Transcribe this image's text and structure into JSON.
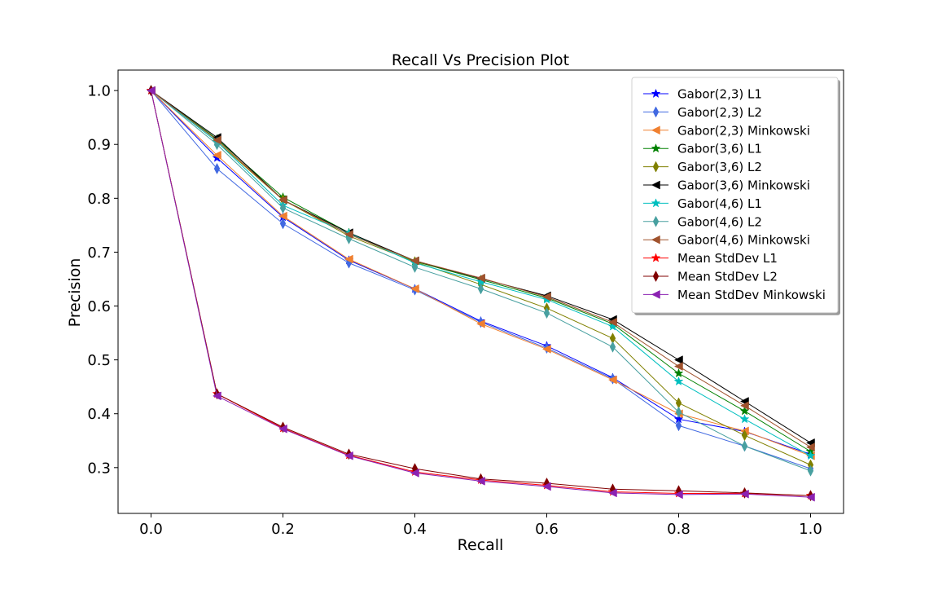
{
  "chart_data": {
    "type": "line",
    "title": "Recall Vs Precision Plot",
    "xlabel": "Recall",
    "ylabel": "Precision",
    "xlim": [
      -0.05,
      1.05
    ],
    "ylim": [
      0.215,
      1.038
    ],
    "x": [
      0.0,
      0.1,
      0.2,
      0.3,
      0.4,
      0.5,
      0.6,
      0.7,
      0.8,
      0.9,
      1.0
    ],
    "xticks": [
      "0.0",
      "0.2",
      "0.4",
      "0.6",
      "0.8",
      "1.0"
    ],
    "yticks": [
      "0.3",
      "0.4",
      "0.5",
      "0.6",
      "0.7",
      "0.8",
      "0.9",
      "1.0"
    ],
    "grid": false,
    "legend_position": "top-right",
    "series": [
      {
        "name": "Gabor(2,3) L1",
        "color": "#0000ff",
        "marker": "star",
        "values": [
          1.0,
          0.875,
          0.765,
          0.685,
          0.632,
          0.572,
          0.526,
          0.467,
          0.39,
          0.367,
          0.325
        ]
      },
      {
        "name": "Gabor(2,3) L2",
        "color": "#4169e1",
        "marker": "thin-diamond",
        "values": [
          1.0,
          0.855,
          0.753,
          0.68,
          0.63,
          0.57,
          0.522,
          0.465,
          0.378,
          0.34,
          0.298
        ]
      },
      {
        "name": "Gabor(2,3) Minkowski",
        "color": "#f08030",
        "marker": "triangle-left",
        "values": [
          1.0,
          0.88,
          0.767,
          0.687,
          0.632,
          0.567,
          0.52,
          0.463,
          0.4,
          0.368,
          0.322
        ]
      },
      {
        "name": "Gabor(3,6) L1",
        "color": "#008000",
        "marker": "star",
        "values": [
          1.0,
          0.91,
          0.802,
          0.736,
          0.683,
          0.649,
          0.615,
          0.567,
          0.475,
          0.405,
          0.33
        ]
      },
      {
        "name": "Gabor(3,6) L2",
        "color": "#808000",
        "marker": "thin-diamond",
        "values": [
          1.0,
          0.905,
          0.797,
          0.73,
          0.682,
          0.64,
          0.596,
          0.54,
          0.42,
          0.36,
          0.305
        ]
      },
      {
        "name": "Gabor(3,6) Minkowski",
        "color": "#000000",
        "marker": "triangle-left",
        "values": [
          1.0,
          0.913,
          0.797,
          0.736,
          0.684,
          0.651,
          0.619,
          0.575,
          0.5,
          0.423,
          0.346
        ]
      },
      {
        "name": "Gabor(4,6) L1",
        "color": "#00bfbf",
        "marker": "star",
        "values": [
          1.0,
          0.905,
          0.787,
          0.735,
          0.68,
          0.645,
          0.612,
          0.562,
          0.46,
          0.39,
          0.322
        ]
      },
      {
        "name": "Gabor(4,6) L2",
        "color": "#48a0a0",
        "marker": "thin-diamond",
        "values": [
          1.0,
          0.9,
          0.782,
          0.725,
          0.672,
          0.632,
          0.587,
          0.524,
          0.403,
          0.34,
          0.294
        ]
      },
      {
        "name": "Gabor(4,6) Minkowski",
        "color": "#a0522d",
        "marker": "triangle-left",
        "values": [
          1.0,
          0.908,
          0.797,
          0.733,
          0.684,
          0.652,
          0.617,
          0.57,
          0.488,
          0.415,
          0.338
        ]
      },
      {
        "name": "Mean StdDev L1",
        "color": "#ff0000",
        "marker": "star",
        "values": [
          1.0,
          0.437,
          0.373,
          0.323,
          0.292,
          0.277,
          0.267,
          0.255,
          0.252,
          0.252,
          0.248
        ]
      },
      {
        "name": "Mean StdDev L2",
        "color": "#800000",
        "marker": "thin-diamond",
        "values": [
          1.0,
          0.437,
          0.375,
          0.325,
          0.298,
          0.279,
          0.271,
          0.26,
          0.257,
          0.253,
          0.248
        ]
      },
      {
        "name": "Mean StdDev Minkowski",
        "color": "#8b22b2",
        "marker": "triangle-left",
        "values": [
          1.0,
          0.433,
          0.372,
          0.322,
          0.29,
          0.275,
          0.265,
          0.253,
          0.25,
          0.251,
          0.245
        ]
      }
    ]
  }
}
